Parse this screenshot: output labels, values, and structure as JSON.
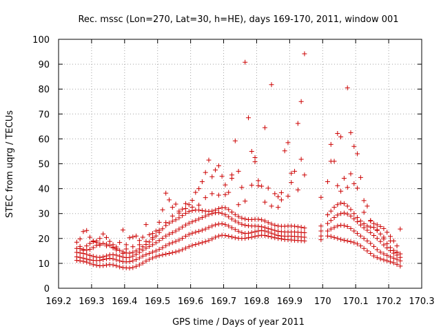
{
  "chart_data": {
    "type": "scatter",
    "title": "Rec. mssc (Lon=270, Lat=30, h=HE), days 169-170, 2011, window 001",
    "xlabel": "GPS time / Days of year 2011",
    "ylabel": "STEC from uqrg / TECUs",
    "xlim": [
      169.2,
      170.3
    ],
    "ylim": [
      0,
      100
    ],
    "xticks": [
      169.2,
      169.3,
      169.4,
      169.5,
      169.6,
      169.7,
      169.8,
      169.9,
      170.0,
      170.1,
      170.2,
      170.3
    ],
    "xtick_labels": [
      "169.2",
      "169.3",
      "169.4",
      "169.5",
      "169.6",
      "169.7",
      "169.8",
      "169.9",
      "170",
      "170.1",
      "170.2",
      "170.3"
    ],
    "yticks": [
      0,
      10,
      20,
      30,
      40,
      50,
      60,
      70,
      80,
      90,
      100
    ],
    "ytick_labels": [
      "0",
      "10",
      "20",
      "30",
      "40",
      "50",
      "60",
      "70",
      "80",
      "90",
      "100"
    ],
    "grid": true,
    "marker": "plus",
    "color": "#cc0000",
    "series": [
      {
        "x": [
          169.255,
          169.265,
          169.275,
          169.285,
          169.295,
          169.305,
          169.315,
          169.325,
          169.335,
          169.345,
          169.355,
          169.365,
          169.375,
          169.385,
          169.395,
          169.405,
          169.415,
          169.425,
          169.435,
          169.445,
          169.455,
          169.465,
          169.475,
          169.485,
          169.495,
          169.505,
          169.515,
          169.525,
          169.535,
          169.545,
          169.555,
          169.565,
          169.575,
          169.585,
          169.595,
          169.605,
          169.615,
          169.625,
          169.635,
          169.645,
          169.655,
          169.665,
          169.675,
          169.685,
          169.695,
          169.705,
          169.715,
          169.725,
          169.735,
          169.745,
          169.755,
          169.765,
          169.775,
          169.785,
          169.795,
          169.805,
          169.815,
          169.825,
          169.835,
          169.845,
          169.855,
          169.865,
          169.875,
          169.885,
          169.895,
          169.905,
          169.915,
          169.925,
          169.935,
          169.945,
          169.995,
          170.015,
          170.025,
          170.035,
          170.045,
          170.055,
          170.065,
          170.075,
          170.085,
          170.095,
          170.105,
          170.115,
          170.125,
          170.135,
          170.145,
          170.155,
          170.165,
          170.175,
          170.185,
          170.195,
          170.205,
          170.215,
          170.225,
          170.235
        ],
        "y": [
          11.2,
          11.0,
          10.8,
          10.5,
          10.0,
          9.5,
          9.2,
          9.0,
          9.1,
          9.3,
          9.5,
          9.4,
          9.0,
          8.6,
          8.3,
          8.2,
          8.1,
          8.3,
          8.8,
          9.4,
          10.1,
          10.9,
          11.6,
          12.2,
          12.7,
          13.1,
          13.4,
          13.7,
          14.0,
          14.3,
          14.6,
          15.0,
          15.5,
          16.1,
          16.7,
          17.2,
          17.6,
          18.0,
          18.3,
          18.7,
          19.2,
          19.8,
          20.5,
          21.0,
          21.3,
          21.2,
          20.9,
          20.6,
          20.3,
          20.1,
          20.0,
          20.1,
          20.3,
          20.5,
          20.8,
          21.1,
          21.3,
          21.2,
          20.9,
          20.6,
          20.3,
          20.0,
          19.8,
          19.6,
          19.5,
          19.4,
          19.3,
          19.2,
          19.1,
          19.0,
          19.5,
          21.0,
          20.8,
          20.4,
          20.0,
          19.6,
          19.3,
          19.0,
          18.7,
          18.3,
          17.8,
          17.0,
          16.0,
          15.0,
          14.0,
          13.0,
          12.3,
          11.8,
          11.4,
          11.0,
          10.6,
          10.2,
          9.6,
          8.9
        ]
      },
      {
        "x": [
          169.255,
          169.265,
          169.275,
          169.285,
          169.295,
          169.305,
          169.315,
          169.325,
          169.335,
          169.345,
          169.355,
          169.365,
          169.375,
          169.385,
          169.395,
          169.405,
          169.415,
          169.425,
          169.435,
          169.445,
          169.455,
          169.465,
          169.475,
          169.485,
          169.495,
          169.505,
          169.515,
          169.525,
          169.535,
          169.545,
          169.555,
          169.565,
          169.575,
          169.585,
          169.595,
          169.605,
          169.615,
          169.625,
          169.635,
          169.645,
          169.655,
          169.665,
          169.675,
          169.685,
          169.695,
          169.705,
          169.715,
          169.725,
          169.735,
          169.745,
          169.755,
          169.765,
          169.775,
          169.785,
          169.795,
          169.805,
          169.815,
          169.825,
          169.835,
          169.845,
          169.855,
          169.865,
          169.875,
          169.885,
          169.895,
          169.905,
          169.915,
          169.925,
          169.935,
          169.945,
          169.995,
          170.015,
          170.025,
          170.035,
          170.045,
          170.055,
          170.065,
          170.075,
          170.085,
          170.095,
          170.105,
          170.115,
          170.125,
          170.135,
          170.145,
          170.155,
          170.165,
          170.175,
          170.185,
          170.195,
          170.205,
          170.215,
          170.225,
          170.235
        ],
        "y": [
          12.6,
          12.4,
          12.1,
          11.7,
          11.4,
          11.2,
          11.1,
          11.2,
          11.5,
          11.8,
          12.0,
          11.8,
          11.4,
          11.0,
          10.7,
          10.6,
          10.7,
          11.0,
          11.5,
          12.2,
          12.9,
          13.5,
          14.0,
          14.5,
          15.0,
          15.6,
          16.3,
          17.1,
          17.8,
          18.3,
          18.8,
          19.4,
          20.1,
          20.9,
          21.6,
          22.1,
          22.5,
          22.9,
          23.3,
          23.8,
          24.4,
          25.0,
          25.5,
          25.8,
          25.9,
          25.6,
          25.0,
          24.3,
          23.6,
          22.9,
          22.3,
          22.0,
          22.1,
          22.4,
          22.7,
          23.0,
          23.2,
          23.0,
          22.6,
          22.1,
          21.6,
          21.2,
          21.0,
          20.9,
          20.9,
          20.9,
          20.8,
          20.7,
          20.6,
          20.5,
          21.0,
          23.0,
          23.8,
          24.4,
          25.0,
          25.3,
          25.2,
          24.8,
          24.0,
          23.0,
          22.0,
          21.0,
          20.0,
          19.0,
          18.0,
          16.8,
          15.5,
          14.5,
          13.8,
          13.2,
          12.6,
          12.1,
          11.6,
          11.0
        ]
      },
      {
        "x": [
          169.255,
          169.265,
          169.275,
          169.285,
          169.295,
          169.305,
          169.315,
          169.325,
          169.335,
          169.345,
          169.355,
          169.365,
          169.375,
          169.385,
          169.395,
          169.405,
          169.415,
          169.425,
          169.435,
          169.445,
          169.455,
          169.465,
          169.475,
          169.485,
          169.495,
          169.505,
          169.515,
          169.525,
          169.535,
          169.545,
          169.555,
          169.565,
          169.575,
          169.585,
          169.595,
          169.605,
          169.615,
          169.625,
          169.635,
          169.645,
          169.655,
          169.665,
          169.675,
          169.685,
          169.695,
          169.705,
          169.715,
          169.725,
          169.735,
          169.745,
          169.755,
          169.765,
          169.775,
          169.785,
          169.795,
          169.805,
          169.815,
          169.825,
          169.835,
          169.845,
          169.855,
          169.865,
          169.875,
          169.885,
          169.895,
          169.905,
          169.915,
          169.925,
          169.935,
          169.945,
          169.995,
          170.015,
          170.025,
          170.035,
          170.045,
          170.055,
          170.065,
          170.075,
          170.085,
          170.095,
          170.105,
          170.115,
          170.125,
          170.135,
          170.145,
          170.155,
          170.165,
          170.175,
          170.185,
          170.195,
          170.205,
          170.215,
          170.225,
          170.235
        ],
        "y": [
          14.4,
          14.2,
          14.0,
          13.6,
          13.2,
          12.8,
          12.5,
          12.4,
          12.6,
          13.0,
          13.4,
          13.5,
          13.3,
          12.9,
          12.5,
          12.3,
          12.4,
          12.9,
          13.6,
          14.4,
          15.3,
          16.1,
          16.8,
          17.5,
          18.3,
          19.2,
          20.1,
          21.0,
          21.7,
          22.3,
          23.0,
          23.8,
          24.6,
          25.4,
          26.1,
          26.7,
          27.2,
          27.8,
          28.4,
          29.0,
          29.6,
          30.0,
          30.3,
          30.4,
          30.1,
          29.5,
          28.7,
          27.8,
          27.0,
          26.3,
          25.7,
          25.3,
          25.1,
          25.0,
          25.0,
          24.9,
          24.7,
          24.4,
          24.0,
          23.6,
          23.2,
          22.9,
          22.7,
          22.6,
          22.6,
          22.6,
          22.6,
          22.5,
          22.4,
          22.3,
          23.0,
          26.0,
          27.2,
          28.4,
          29.4,
          30.0,
          30.2,
          29.8,
          29.0,
          27.9,
          26.7,
          25.4,
          24.3,
          23.3,
          22.3,
          21.2,
          20.0,
          18.8,
          17.4,
          16.2,
          15.1,
          14.1,
          13.3,
          12.4
        ]
      },
      {
        "x": [
          169.255,
          169.265,
          169.275,
          169.285,
          169.295,
          169.305,
          169.315,
          169.325,
          169.335,
          169.345,
          169.355,
          169.365,
          169.375,
          169.385,
          169.395,
          169.405,
          169.415,
          169.425,
          169.435,
          169.445,
          169.455,
          169.465,
          169.475,
          169.485,
          169.495,
          169.505,
          169.515,
          169.525,
          169.535,
          169.545,
          169.555,
          169.565,
          169.575,
          169.585,
          169.595,
          169.605,
          169.615,
          169.625,
          169.635,
          169.645,
          169.655,
          169.665,
          169.675,
          169.685,
          169.695,
          169.705,
          169.715,
          169.725,
          169.735,
          169.745,
          169.755,
          169.765,
          169.775,
          169.785,
          169.795,
          169.805,
          169.815,
          169.825,
          169.835,
          169.845,
          169.855,
          169.865,
          169.875,
          169.885,
          169.895,
          169.905,
          169.915,
          169.925,
          169.935,
          169.945,
          169.995,
          170.015,
          170.025,
          170.035,
          170.045,
          170.055,
          170.065,
          170.075,
          170.085,
          170.095,
          170.105,
          170.115,
          170.125,
          170.135,
          170.145,
          170.155,
          170.165,
          170.175,
          170.185,
          170.195,
          170.205,
          170.215,
          170.225,
          170.235
        ],
        "y": [
          16.0,
          15.9,
          15.6,
          15.3,
          15.6,
          16.3,
          17.2,
          17.8,
          18.0,
          17.7,
          17.2,
          16.6,
          15.9,
          15.2,
          14.6,
          14.2,
          14.1,
          14.4,
          15.0,
          15.8,
          16.7,
          17.6,
          18.6,
          19.7,
          21.0,
          22.4,
          23.9,
          25.2,
          26.2,
          26.9,
          27.5,
          28.3,
          29.2,
          30.1,
          30.8,
          31.2,
          31.4,
          31.4,
          31.2,
          31.0,
          30.9,
          31.0,
          31.4,
          32.0,
          32.4,
          32.3,
          31.6,
          30.6,
          29.6,
          28.8,
          28.2,
          27.8,
          27.6,
          27.6,
          27.7,
          27.7,
          27.5,
          27.0,
          26.4,
          25.8,
          25.3,
          25.0,
          24.9,
          24.9,
          25.0,
          25.0,
          24.9,
          24.7,
          24.5,
          24.2,
          25.0,
          29.5,
          31.0,
          32.5,
          33.6,
          34.2,
          34.0,
          33.0,
          31.6,
          30.0,
          28.4,
          27.0,
          25.9,
          25.0,
          24.6,
          24.4,
          23.5,
          21.8,
          19.8,
          17.9,
          16.3,
          15.2,
          14.4,
          13.8
        ]
      },
      {
        "x": [
          169.255,
          169.265,
          169.275,
          169.285,
          169.295,
          169.305,
          169.315,
          169.325,
          169.335,
          169.345,
          169.355,
          169.365,
          169.375,
          169.385,
          169.395,
          169.405,
          169.415,
          169.425,
          169.435,
          169.445,
          169.455,
          169.465,
          169.475,
          169.485,
          169.495,
          169.505,
          169.515,
          169.525,
          169.535,
          169.545,
          169.555,
          169.565,
          169.575,
          169.585,
          169.595,
          169.605,
          169.615,
          169.625,
          169.635,
          169.645,
          169.655,
          169.665,
          169.675,
          169.685,
          169.695,
          169.705,
          169.715,
          169.725,
          169.735,
          169.745,
          169.755,
          169.765,
          169.775,
          169.785,
          169.795,
          169.805,
          169.815,
          169.825,
          169.835,
          169.845,
          169.855,
          169.865,
          169.875,
          169.885,
          169.895,
          169.905,
          169.915,
          169.925,
          169.935,
          169.945,
          169.995,
          170.015,
          170.025,
          170.035,
          170.045,
          170.055,
          170.065,
          170.075,
          170.085,
          170.095,
          170.105,
          170.115,
          170.125,
          170.135,
          170.145,
          170.155,
          170.165,
          170.175,
          170.185,
          170.195,
          170.205,
          170.215,
          170.225,
          170.235
        ],
        "y": [
          18.5,
          19.8,
          22.8,
          23.2,
          20.5,
          18.7,
          19.0,
          20.0,
          21.8,
          20.4,
          18.8,
          17.5,
          16.6,
          18.4,
          23.4,
          17.5,
          20.3,
          20.6,
          21.0,
          19.2,
          20.5,
          25.6,
          21.5,
          22.0,
          23.0,
          26.5,
          31.5,
          38.2,
          35.5,
          32.5,
          33.8,
          30.2,
          31.8,
          32.0,
          33.6,
          35.3,
          38.5,
          40.0,
          42.8,
          46.5,
          51.5,
          44.8,
          47.5,
          49.2,
          45.0,
          41.5,
          38.5,
          45.5,
          59.2,
          47.0,
          40.5,
          90.8,
          68.5,
          55.0,
          50.8,
          43.2,
          41.0,
          64.5,
          40.2,
          81.8,
          38.0,
          36.8,
          35.5,
          55.2,
          58.5,
          42.5,
          47.0,
          66.2,
          75.0,
          94.2,
          36.5,
          42.8,
          57.8,
          51.0,
          62.2,
          60.8,
          44.2,
          80.5,
          62.5,
          57.0,
          54.0,
          44.5,
          35.2,
          33.0,
          27.2,
          26.0,
          25.5,
          24.8,
          24.0,
          22.5,
          20.8,
          19.0,
          17.0,
          23.8
        ]
      },
      {
        "x": [
          169.265,
          169.275,
          169.285,
          169.295,
          169.305,
          169.315,
          169.325,
          169.345,
          169.365,
          169.375,
          169.395,
          169.405,
          169.425,
          169.445,
          169.465,
          169.485,
          169.505,
          169.525,
          169.545,
          169.565,
          169.585,
          169.605,
          169.625,
          169.645,
          169.665,
          169.685,
          169.705,
          169.725,
          169.745,
          169.765,
          169.785,
          169.795,
          169.805,
          169.825,
          169.845,
          169.865,
          169.875,
          169.895,
          169.905,
          169.925,
          169.935,
          169.945,
          170.025,
          170.045,
          170.055,
          170.075,
          170.085,
          170.095,
          170.105,
          170.125,
          170.145,
          170.165,
          170.185,
          170.205,
          170.225
        ],
        "y": [
          16.8,
          15.2,
          17.0,
          18.0,
          19.0,
          18.4,
          17.3,
          17.0,
          16.2,
          15.4,
          14.0,
          15.8,
          16.7,
          17.5,
          18.8,
          20.4,
          23.3,
          26.4,
          29.0,
          31.0,
          34.0,
          32.6,
          33.4,
          36.4,
          38.0,
          37.4,
          37.6,
          44.2,
          33.6,
          35.0,
          41.4,
          52.5,
          41.2,
          34.6,
          33.0,
          32.5,
          38.4,
          37.0,
          46.2,
          39.5,
          51.8,
          45.5,
          51.0,
          41.2,
          39.0,
          40.5,
          46.0,
          42.0,
          40.2,
          30.5,
          27.0,
          23.2,
          20.5,
          19.0,
          14.5
        ]
      }
    ]
  }
}
